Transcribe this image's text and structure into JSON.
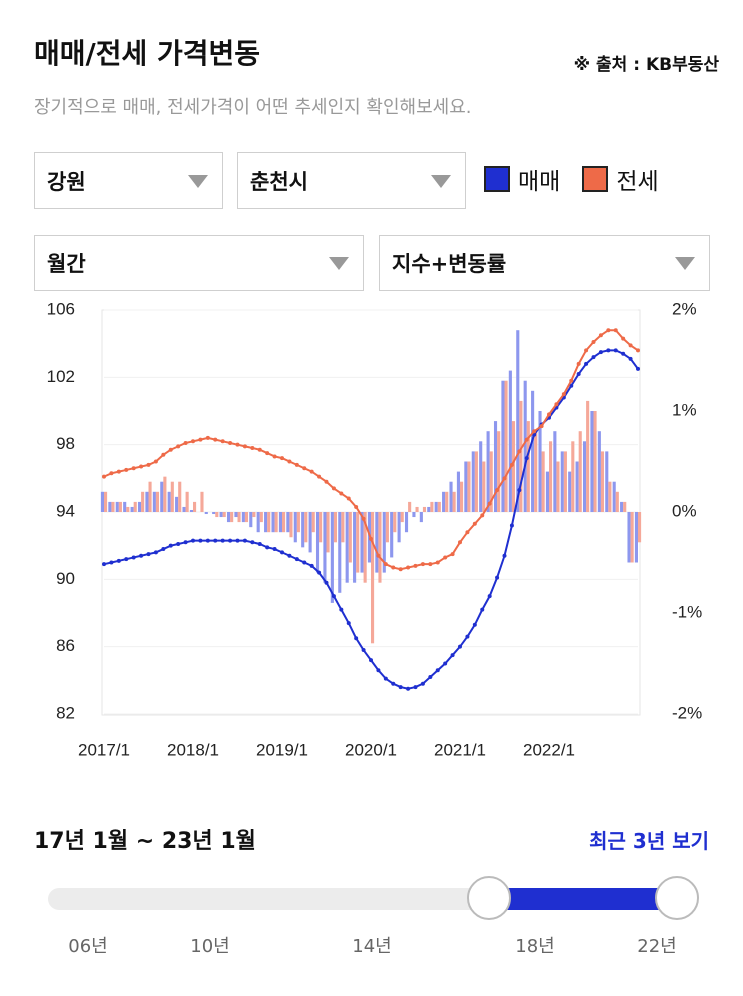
{
  "header": {
    "title": "매매/전세 가격변동",
    "source": "※ 출처 : KB부동산",
    "subtitle": "장기적으로 매매, 전세가격이 어떤 추세인지 확인해보세요."
  },
  "filters": {
    "region": "강원",
    "city": "춘천시",
    "period": "월간",
    "view": "지수+변동률"
  },
  "chart_data": {
    "type": "bar-line",
    "categories": [
      "2017/1",
      null,
      null,
      null,
      null,
      null,
      null,
      null,
      null,
      null,
      null,
      null,
      "2018/1",
      null,
      null,
      null,
      null,
      null,
      null,
      null,
      null,
      null,
      null,
      null,
      "2019/1",
      null,
      null,
      null,
      null,
      null,
      null,
      null,
      null,
      null,
      null,
      null,
      "2020/1",
      null,
      null,
      null,
      null,
      null,
      null,
      null,
      null,
      null,
      null,
      null,
      "2021/1",
      null,
      null,
      null,
      null,
      null,
      null,
      null,
      null,
      null,
      null,
      null,
      "2022/1",
      null,
      null,
      null,
      null,
      null,
      null,
      null,
      null,
      null,
      null,
      null,
      null
    ],
    "ylim": [
      82,
      106
    ],
    "yticks": [
      82,
      86,
      90,
      94,
      98,
      102,
      106
    ],
    "y2lim": [
      -2,
      2
    ],
    "y2ticks": [
      {
        "value": 2,
        "label": "2%"
      },
      {
        "value": 1,
        "label": "1%"
      },
      {
        "value": 0,
        "label": "0%"
      },
      {
        "value": -1,
        "label": "-1%"
      },
      {
        "value": -2,
        "label": "-2%"
      }
    ],
    "grid": true,
    "series": [
      {
        "name": "매매",
        "color": "#1f2fd0",
        "bar_color": "#8d97ee",
        "values": [
          90.9,
          91.0,
          91.1,
          91.2,
          91.3,
          91.4,
          91.5,
          91.6,
          91.8,
          92.0,
          92.1,
          92.2,
          92.3,
          92.3,
          92.3,
          92.3,
          92.3,
          92.3,
          92.3,
          92.3,
          92.2,
          92.1,
          91.9,
          91.8,
          91.6,
          91.4,
          91.2,
          91.0,
          90.8,
          90.4,
          89.8,
          89.0,
          88.2,
          87.4,
          86.5,
          85.8,
          85.2,
          84.6,
          84.1,
          83.8,
          83.6,
          83.5,
          83.6,
          83.8,
          84.2,
          84.6,
          85.0,
          85.5,
          86.0,
          86.6,
          87.3,
          88.2,
          89.0,
          90.1,
          91.4,
          93.2,
          95.3,
          97.2,
          98.6,
          99.2,
          99.6,
          100.2,
          100.8,
          101.5,
          102.2,
          102.8,
          103.2,
          103.5,
          103.6,
          103.6,
          103.4,
          103.1,
          102.5
        ],
        "changes": [
          0.2,
          0.1,
          0.1,
          0.1,
          0.05,
          0.1,
          0.2,
          0.2,
          0.3,
          0.2,
          0.15,
          0.05,
          0.02,
          0,
          -0.02,
          -0.02,
          -0.05,
          -0.1,
          -0.05,
          -0.1,
          -0.15,
          -0.2,
          -0.2,
          -0.2,
          -0.2,
          -0.2,
          -0.3,
          -0.35,
          -0.4,
          -0.6,
          -0.7,
          -0.9,
          -0.8,
          -0.7,
          -0.7,
          -0.6,
          -0.5,
          -0.6,
          -0.6,
          -0.45,
          -0.3,
          -0.2,
          -0.05,
          -0.1,
          0.05,
          0.1,
          0.2,
          0.3,
          0.4,
          0.5,
          0.6,
          0.7,
          0.8,
          0.9,
          1.3,
          1.4,
          1.8,
          1.3,
          1.2,
          1.0,
          0.4,
          0.8,
          0.6,
          0.4,
          0.5,
          0.7,
          1.0,
          0.8,
          0.6,
          0.3,
          0.1,
          -0.5,
          -0.5
        ]
      },
      {
        "name": "전세",
        "color": "#ee6a48",
        "bar_color": "#f5a899",
        "values": [
          96.1,
          96.3,
          96.4,
          96.5,
          96.6,
          96.7,
          96.8,
          97.0,
          97.4,
          97.7,
          97.9,
          98.1,
          98.2,
          98.3,
          98.4,
          98.3,
          98.2,
          98.1,
          98.0,
          97.9,
          97.8,
          97.7,
          97.5,
          97.3,
          97.2,
          97.0,
          96.8,
          96.6,
          96.4,
          96.1,
          95.8,
          95.4,
          95.1,
          94.8,
          94.3,
          93.6,
          92.4,
          91.4,
          90.9,
          90.7,
          90.6,
          90.7,
          90.8,
          90.9,
          90.9,
          91.0,
          91.3,
          91.5,
          92.2,
          92.8,
          93.3,
          93.8,
          94.5,
          95.3,
          96.0,
          96.8,
          97.6,
          98.3,
          98.8,
          99.1,
          99.8,
          100.4,
          101.0,
          101.8,
          102.8,
          103.6,
          104.1,
          104.5,
          104.8,
          104.8,
          104.3,
          103.9,
          103.6
        ],
        "changes": [
          0.2,
          0.1,
          0.1,
          0.05,
          0.1,
          0.2,
          0.3,
          0.2,
          0.35,
          0.3,
          0.3,
          0.2,
          0.1,
          0.2,
          0,
          -0.05,
          -0.05,
          -0.1,
          -0.1,
          -0.1,
          -0.05,
          -0.1,
          -0.2,
          -0.2,
          -0.2,
          -0.25,
          -0.2,
          -0.3,
          -0.2,
          -0.3,
          -0.4,
          -0.3,
          -0.3,
          -0.5,
          -0.6,
          -0.7,
          -1.3,
          -0.7,
          -0.3,
          -0.2,
          -0.1,
          0.1,
          0.05,
          0.05,
          0.1,
          0.1,
          0.2,
          0.2,
          0.3,
          0.5,
          0.6,
          0.5,
          0.6,
          0.8,
          1.3,
          0.9,
          1.1,
          0.9,
          0.8,
          0.6,
          0.7,
          0.5,
          0.6,
          0.7,
          0.8,
          1.1,
          1.0,
          0.6,
          0.3,
          0.2,
          0.1,
          -0.5,
          -0.3
        ]
      }
    ]
  },
  "range": {
    "label": "17년 1월 ~ 23년 1월",
    "recent": "최근 3년 보기"
  },
  "slider": {
    "labels": [
      "06년",
      "10년",
      "14년",
      "18년",
      "22년"
    ]
  }
}
